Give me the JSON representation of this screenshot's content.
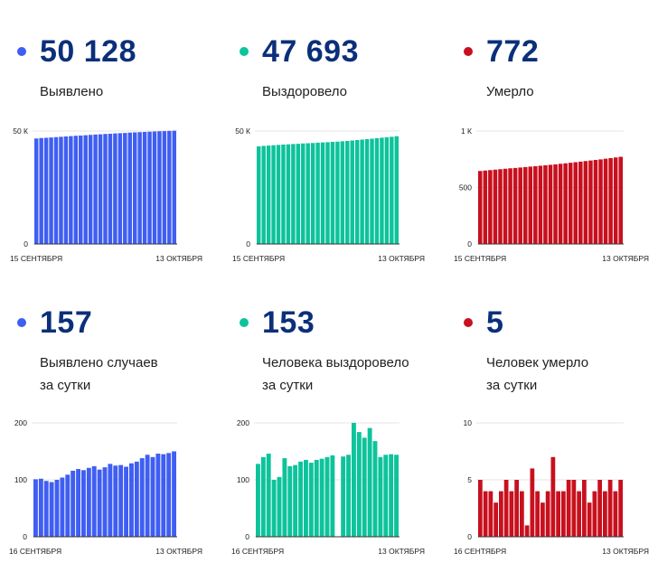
{
  "colors": {
    "blue": "#3f5ef2",
    "green": "#0dc39b",
    "red": "#c8101e"
  },
  "panels": [
    {
      "id": "detected-total",
      "value": "50 128",
      "label_lines": [
        "Выявлено"
      ],
      "dot_color": "#3f5ef2",
      "chart_data": {
        "type": "bar",
        "series": [
          {
            "color": "#3f5ef2",
            "values": [
              46700,
              46900,
              47000,
              47150,
              47300,
              47450,
              47600,
              47750,
              47900,
              48000,
              48150,
              48300,
              48450,
              48550,
              48700,
              48800,
              48950,
              49050,
              49150,
              49300,
              49400,
              49500,
              49600,
              49700,
              49800,
              49900,
              49950,
              50050,
              50128
            ]
          }
        ],
        "ylim": [
          0,
          50000
        ],
        "y_tick_labels": [
          {
            "value": 50000,
            "text": "50 К"
          },
          {
            "value": 0,
            "text": "0"
          }
        ],
        "x_tick_labels": [
          "15 СЕНТЯБРЯ",
          "13 ОКТЯБРЯ"
        ]
      }
    },
    {
      "id": "recovered-total",
      "value": "47 693",
      "label_lines": [
        "Выздоровело"
      ],
      "dot_color": "#0dc39b",
      "chart_data": {
        "type": "bar",
        "series": [
          {
            "color": "#0dc39b",
            "values": [
              43200,
              43400,
              43550,
              43700,
              43850,
              44000,
              44100,
              44250,
              44350,
              44500,
              44600,
              44700,
              44850,
              44950,
              45050,
              45200,
              45300,
              45450,
              45600,
              45800,
              46000,
              46200,
              46400,
              46600,
              46850,
              47050,
              47250,
              47450,
              47693
            ]
          }
        ],
        "ylim": [
          0,
          50000
        ],
        "y_tick_labels": [
          {
            "value": 50000,
            "text": "50 К"
          },
          {
            "value": 0,
            "text": "0"
          }
        ],
        "x_tick_labels": [
          "15 СЕНТЯБРЯ",
          "13 ОКТЯБРЯ"
        ]
      }
    },
    {
      "id": "died-total",
      "value": "772",
      "label_lines": [
        "Умерло"
      ],
      "dot_color": "#c8101e",
      "chart_data": {
        "type": "bar",
        "series": [
          {
            "color": "#c8101e",
            "values": [
              646,
              650,
              654,
              658,
              662,
              666,
              670,
              673,
              677,
              681,
              685,
              689,
              693,
              697,
              701,
              705,
              710,
              714,
              719,
              724,
              729,
              734,
              739,
              744,
              749,
              755,
              760,
              766,
              772
            ]
          }
        ],
        "ylim": [
          0,
          1000
        ],
        "y_tick_labels": [
          {
            "value": 1000,
            "text": "1 К"
          },
          {
            "value": 500,
            "text": "500"
          },
          {
            "value": 0,
            "text": "0"
          }
        ],
        "x_tick_labels": [
          "15 СЕНТЯБРЯ",
          "13 ОКТЯБРЯ"
        ]
      }
    },
    {
      "id": "detected-daily",
      "value": "157",
      "label_lines": [
        "Выявлено случаев",
        "за сутки"
      ],
      "dot_color": "#3f5ef2",
      "chart_data": {
        "type": "bar",
        "series": [
          {
            "color": "#3f5ef2",
            "values": [
              101,
              102,
              98,
              96,
              100,
              104,
              109,
              116,
              119,
              117,
              121,
              124,
              118,
              122,
              128,
              125,
              126,
              123,
              129,
              132,
              138,
              144,
              140,
              146,
              145,
              147,
              150
            ]
          }
        ],
        "ylim": [
          0,
          200
        ],
        "y_tick_labels": [
          {
            "value": 200,
            "text": "200"
          },
          {
            "value": 100,
            "text": "100"
          },
          {
            "value": 0,
            "text": "0"
          }
        ],
        "x_tick_labels": [
          "16 СЕНТЯБРЯ",
          "13 ОКТЯБРЯ"
        ]
      }
    },
    {
      "id": "recovered-daily",
      "value": "153",
      "label_lines": [
        "Человека выздоровело",
        "за сутки"
      ],
      "dot_color": "#0dc39b",
      "chart_data": {
        "type": "bar",
        "series": [
          {
            "color": "#0dc39b",
            "values": [
              128,
              140,
              146,
              100,
              105,
              138,
              124,
              126,
              132,
              135,
              130,
              135,
              137,
              140,
              143,
              null,
              141,
              144,
              200,
              184,
              174,
              191,
              168,
              140,
              144,
              145,
              144
            ]
          }
        ],
        "ylim": [
          0,
          200
        ],
        "y_tick_labels": [
          {
            "value": 200,
            "text": "200"
          },
          {
            "value": 100,
            "text": "100"
          },
          {
            "value": 0,
            "text": "0"
          }
        ],
        "x_tick_labels": [
          "16 СЕНТЯБРЯ",
          "13 ОКТЯБРЯ"
        ]
      }
    },
    {
      "id": "died-daily",
      "value": "5",
      "label_lines": [
        "Человек умерло",
        "за сутки"
      ],
      "dot_color": "#c8101e",
      "chart_data": {
        "type": "bar",
        "series": [
          {
            "color": "#c8101e",
            "values": [
              5,
              4,
              4,
              3,
              4,
              5,
              4,
              5,
              4,
              1,
              6,
              4,
              3,
              4,
              7,
              4,
              4,
              5,
              5,
              4,
              5,
              3,
              4,
              5,
              4,
              5,
              4,
              5
            ]
          }
        ],
        "ylim": [
          0,
          10
        ],
        "y_tick_labels": [
          {
            "value": 10,
            "text": "10"
          },
          {
            "value": 5,
            "text": "5"
          },
          {
            "value": 0,
            "text": "0"
          }
        ],
        "x_tick_labels": [
          "16 СЕНТЯБРЯ",
          "13 ОКТЯБРЯ"
        ]
      }
    }
  ]
}
